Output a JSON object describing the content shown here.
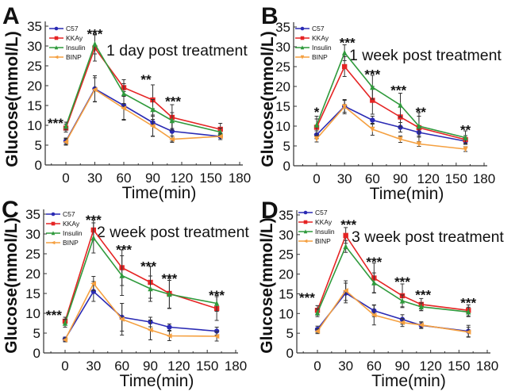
{
  "chart_data": [
    {
      "type": "line",
      "panel_label": "A",
      "title": "1 day post treatment",
      "xlabel": "Time(min)",
      "ylabel": "Glucose(mmol/L)",
      "xlim": [
        -20,
        185
      ],
      "ylim": [
        0,
        35
      ],
      "xticks": [
        0,
        30,
        60,
        90,
        120,
        150,
        180
      ],
      "yticks": [
        0,
        5,
        10,
        15,
        20,
        25,
        30,
        35
      ],
      "x": [
        0,
        30,
        60,
        90,
        110,
        160
      ],
      "legend_position": "top-left",
      "series": [
        {
          "name": "C57",
          "color": "#2a2ab4",
          "marker": "circle",
          "values": [
            6,
            19.2,
            15,
            10.7,
            8.5,
            7.2
          ],
          "err": [
            0.8,
            3.3,
            3.5,
            3.5,
            2.5,
            0.8
          ]
        },
        {
          "name": "KKAy",
          "color": "#e52424",
          "marker": "square",
          "values": [
            9.3,
            29.5,
            19.5,
            16.4,
            12,
            9
          ],
          "err": [
            1,
            3.3,
            2,
            3.8,
            3.2,
            1.5
          ]
        },
        {
          "name": "Insulin",
          "color": "#2f9a3c",
          "marker": "triangle-up",
          "values": [
            9.8,
            30.5,
            18,
            14,
            11.2,
            8.3
          ],
          "err": [
            1,
            2.5,
            2.5,
            2.5,
            2,
            1
          ]
        },
        {
          "name": "BINP",
          "color": "#f5a040",
          "marker": "triangle-left",
          "values": [
            5.8,
            19,
            14.3,
            9.8,
            6.5,
            7.2
          ],
          "err": [
            0.8,
            3,
            3,
            2.5,
            0.8,
            0.8
          ]
        }
      ],
      "annotations": [
        {
          "x": -16,
          "y": 11,
          "text": "***"
        },
        {
          "x": 30,
          "y": 33.5,
          "text": "***"
        },
        {
          "x": 83,
          "y": 22,
          "text": "**"
        },
        {
          "x": 111,
          "y": 16.5,
          "text": "***"
        }
      ]
    },
    {
      "type": "line",
      "panel_label": "B",
      "title": "1 week post treatment",
      "xlabel": "Time(min)",
      "ylabel": "Glucose(mmol/L)",
      "xlim": [
        -20,
        185
      ],
      "ylim": [
        0,
        35
      ],
      "xticks": [
        0,
        30,
        60,
        90,
        120,
        150,
        180
      ],
      "yticks": [
        0,
        5,
        10,
        15,
        20,
        25,
        30,
        35
      ],
      "x": [
        0,
        30,
        60,
        90,
        110,
        160
      ],
      "legend_position": "top-left",
      "series": [
        {
          "name": "C57",
          "color": "#2a2ab4",
          "marker": "circle",
          "values": [
            7.8,
            15,
            11.5,
            9.7,
            8.4,
            6.2
          ],
          "err": [
            1,
            1.5,
            1,
            1.2,
            1.2,
            0.8
          ]
        },
        {
          "name": "KKAy",
          "color": "#e52424",
          "marker": "square",
          "values": [
            9.7,
            25,
            16.5,
            12.3,
            9.6,
            6.6
          ],
          "err": [
            2.8,
            2.5,
            3.5,
            2.5,
            3.8,
            1
          ]
        },
        {
          "name": "Insulin",
          "color": "#2f9a3c",
          "marker": "triangle-up",
          "values": [
            10.3,
            28.5,
            19.8,
            15.3,
            10,
            7.1
          ],
          "err": [
            1.5,
            2,
            3,
            3,
            2.5,
            1.7
          ]
        },
        {
          "name": "BINP",
          "color": "#f5a040",
          "marker": "triangle-down",
          "values": [
            6.8,
            14.9,
            9.2,
            6.7,
            5.5,
            4.2
          ],
          "err": [
            0.8,
            1.8,
            1.5,
            0.8,
            0.6,
            0.6
          ]
        }
      ],
      "annotations": [
        {
          "x": 0,
          "y": 14,
          "text": "*"
        },
        {
          "x": 33,
          "y": 31.5,
          "text": "***"
        },
        {
          "x": 60,
          "y": 23.5,
          "text": "***"
        },
        {
          "x": 88,
          "y": 19.5,
          "text": "***"
        },
        {
          "x": 112,
          "y": 14,
          "text": "**"
        },
        {
          "x": 160,
          "y": 9.5,
          "text": "**"
        }
      ]
    },
    {
      "type": "line",
      "panel_label": "C",
      "title": "2 week post treatment",
      "xlabel": "Time(min)",
      "ylabel": "Glucose(mmol/L)",
      "xlim": [
        -20,
        185
      ],
      "ylim": [
        0,
        35
      ],
      "xticks": [
        0,
        30,
        60,
        90,
        120,
        150,
        180
      ],
      "yticks": [
        0,
        5,
        10,
        15,
        20,
        25,
        30,
        35
      ],
      "x": [
        0,
        30,
        60,
        90,
        110,
        160
      ],
      "legend_position": "top-left",
      "series": [
        {
          "name": "C57",
          "color": "#2a2ab4",
          "marker": "circle",
          "values": [
            3.5,
            15.5,
            9,
            7.8,
            6.5,
            5.5
          ],
          "err": [
            0.5,
            2.5,
            3.5,
            1.2,
            0.8,
            1
          ]
        },
        {
          "name": "KKAy",
          "color": "#e52424",
          "marker": "square",
          "values": [
            8,
            31,
            21.5,
            17.8,
            15,
            11.2
          ],
          "err": [
            1,
            2.5,
            4.5,
            4,
            3.8,
            3
          ]
        },
        {
          "name": "Insulin",
          "color": "#2f9a3c",
          "marker": "triangle-up",
          "values": [
            7.5,
            29,
            19.5,
            16.2,
            14.8,
            12.5
          ],
          "err": [
            1,
            3.8,
            5,
            3.2,
            3.5,
            2
          ]
        },
        {
          "name": "BINP",
          "color": "#f5a040",
          "marker": "triangle-left",
          "values": [
            3.3,
            17.5,
            8.5,
            5.8,
            4.3,
            4.2
          ],
          "err": [
            0.5,
            1.8,
            4,
            2.5,
            1.2,
            1.2
          ]
        }
      ],
      "annotations": [
        {
          "x": -16,
          "y": 10,
          "text": "***"
        },
        {
          "x": 30,
          "y": 34,
          "text": "***"
        },
        {
          "x": 62,
          "y": 26.5,
          "text": "***"
        },
        {
          "x": 88,
          "y": 22.3,
          "text": "***"
        },
        {
          "x": 110,
          "y": 19.2,
          "text": "***"
        },
        {
          "x": 160,
          "y": 15,
          "text": "***"
        }
      ]
    },
    {
      "type": "line",
      "panel_label": "D",
      "title": "3 week post treatment",
      "xlabel": "Time(min)",
      "ylabel": "Glucose(mmol/L)",
      "xlim": [
        -20,
        185
      ],
      "ylim": [
        0,
        35
      ],
      "xticks": [
        0,
        30,
        60,
        90,
        120,
        150,
        180
      ],
      "yticks": [
        0,
        5,
        10,
        15,
        20,
        25,
        30,
        35
      ],
      "x": [
        0,
        30,
        60,
        90,
        110,
        160
      ],
      "legend_position": "top-left",
      "series": [
        {
          "name": "C57",
          "color": "#2a2ab4",
          "marker": "circle",
          "values": [
            6,
            15.2,
            10.7,
            8.5,
            7,
            5.5
          ],
          "err": [
            0.8,
            2.5,
            1.5,
            1.2,
            0.8,
            1.5
          ]
        },
        {
          "name": "KKAy",
          "color": "#e52424",
          "marker": "square",
          "values": [
            10.8,
            29.8,
            19,
            14.5,
            12.3,
            10.8
          ],
          "err": [
            1.2,
            2,
            3.8,
            3,
            1.5,
            1.4
          ]
        },
        {
          "name": "Insulin",
          "color": "#2f9a3c",
          "marker": "triangle-up",
          "values": [
            10.2,
            27,
            17.8,
            13.2,
            11.7,
            10.4
          ],
          "err": [
            1,
            1.5,
            2.5,
            1.5,
            1,
            1.2
          ]
        },
        {
          "name": "BINP",
          "color": "#f5a040",
          "marker": "triangle-left",
          "values": [
            5.5,
            15.8,
            9.6,
            7.7,
            7.1,
            5.3
          ],
          "err": [
            0.6,
            2.5,
            2.5,
            1,
            0.8,
            1.2
          ]
        }
      ],
      "annotations": [
        {
          "x": -13,
          "y": 14.5,
          "text": "***"
        },
        {
          "x": 33,
          "y": 33,
          "text": "***"
        },
        {
          "x": 60,
          "y": 23.5,
          "text": "***"
        },
        {
          "x": 90,
          "y": 18.5,
          "text": "***"
        },
        {
          "x": 112,
          "y": 15.2,
          "text": "***"
        },
        {
          "x": 160,
          "y": 13.2,
          "text": "***"
        }
      ]
    }
  ]
}
